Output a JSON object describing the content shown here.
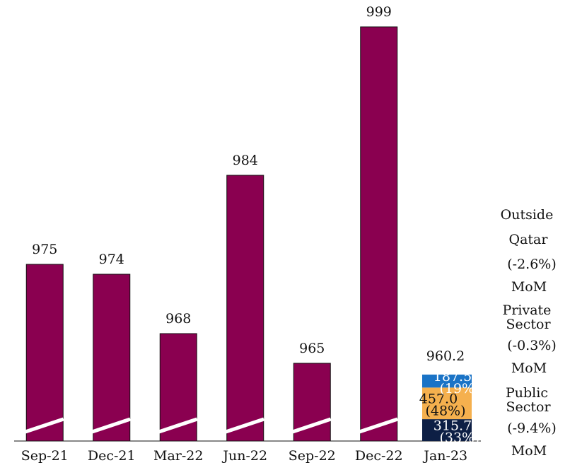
{
  "chart_data": {
    "type": "bar",
    "categories": [
      "Sep-21",
      "Dec-21",
      "Mar-22",
      "Jun-22",
      "Sep-22",
      "Dec-22",
      "Jan-23"
    ],
    "values": [
      975,
      974,
      968,
      984,
      965,
      999,
      null
    ],
    "color": "#8a0050",
    "ylim": [
      957,
      1000
    ],
    "stack": {
      "total": 960.2,
      "segments": [
        {
          "name_lines": [
            "Public",
            "Sector"
          ],
          "value": 315.7,
          "share": 33,
          "share_label": "(33%)",
          "color": "#0d1f45",
          "change": -9.4,
          "change_label": "(-9.4%)",
          "period": "MoM"
        },
        {
          "name_lines": [
            "Private",
            "Sector"
          ],
          "value": 457.0,
          "value_label": "457.0",
          "share": 48,
          "share_label": "(48%)",
          "color": "#f5b04e",
          "change": -0.3,
          "change_label": "(-0.3%)",
          "period": "MoM"
        },
        {
          "name_lines": [
            "Outside",
            "Qatar"
          ],
          "value": 187.5,
          "share": 19,
          "share_label": "(19%)",
          "color": "#1a73c6",
          "change": -2.6,
          "change_label": "(-2.6%)",
          "period": "MoM"
        }
      ]
    }
  }
}
